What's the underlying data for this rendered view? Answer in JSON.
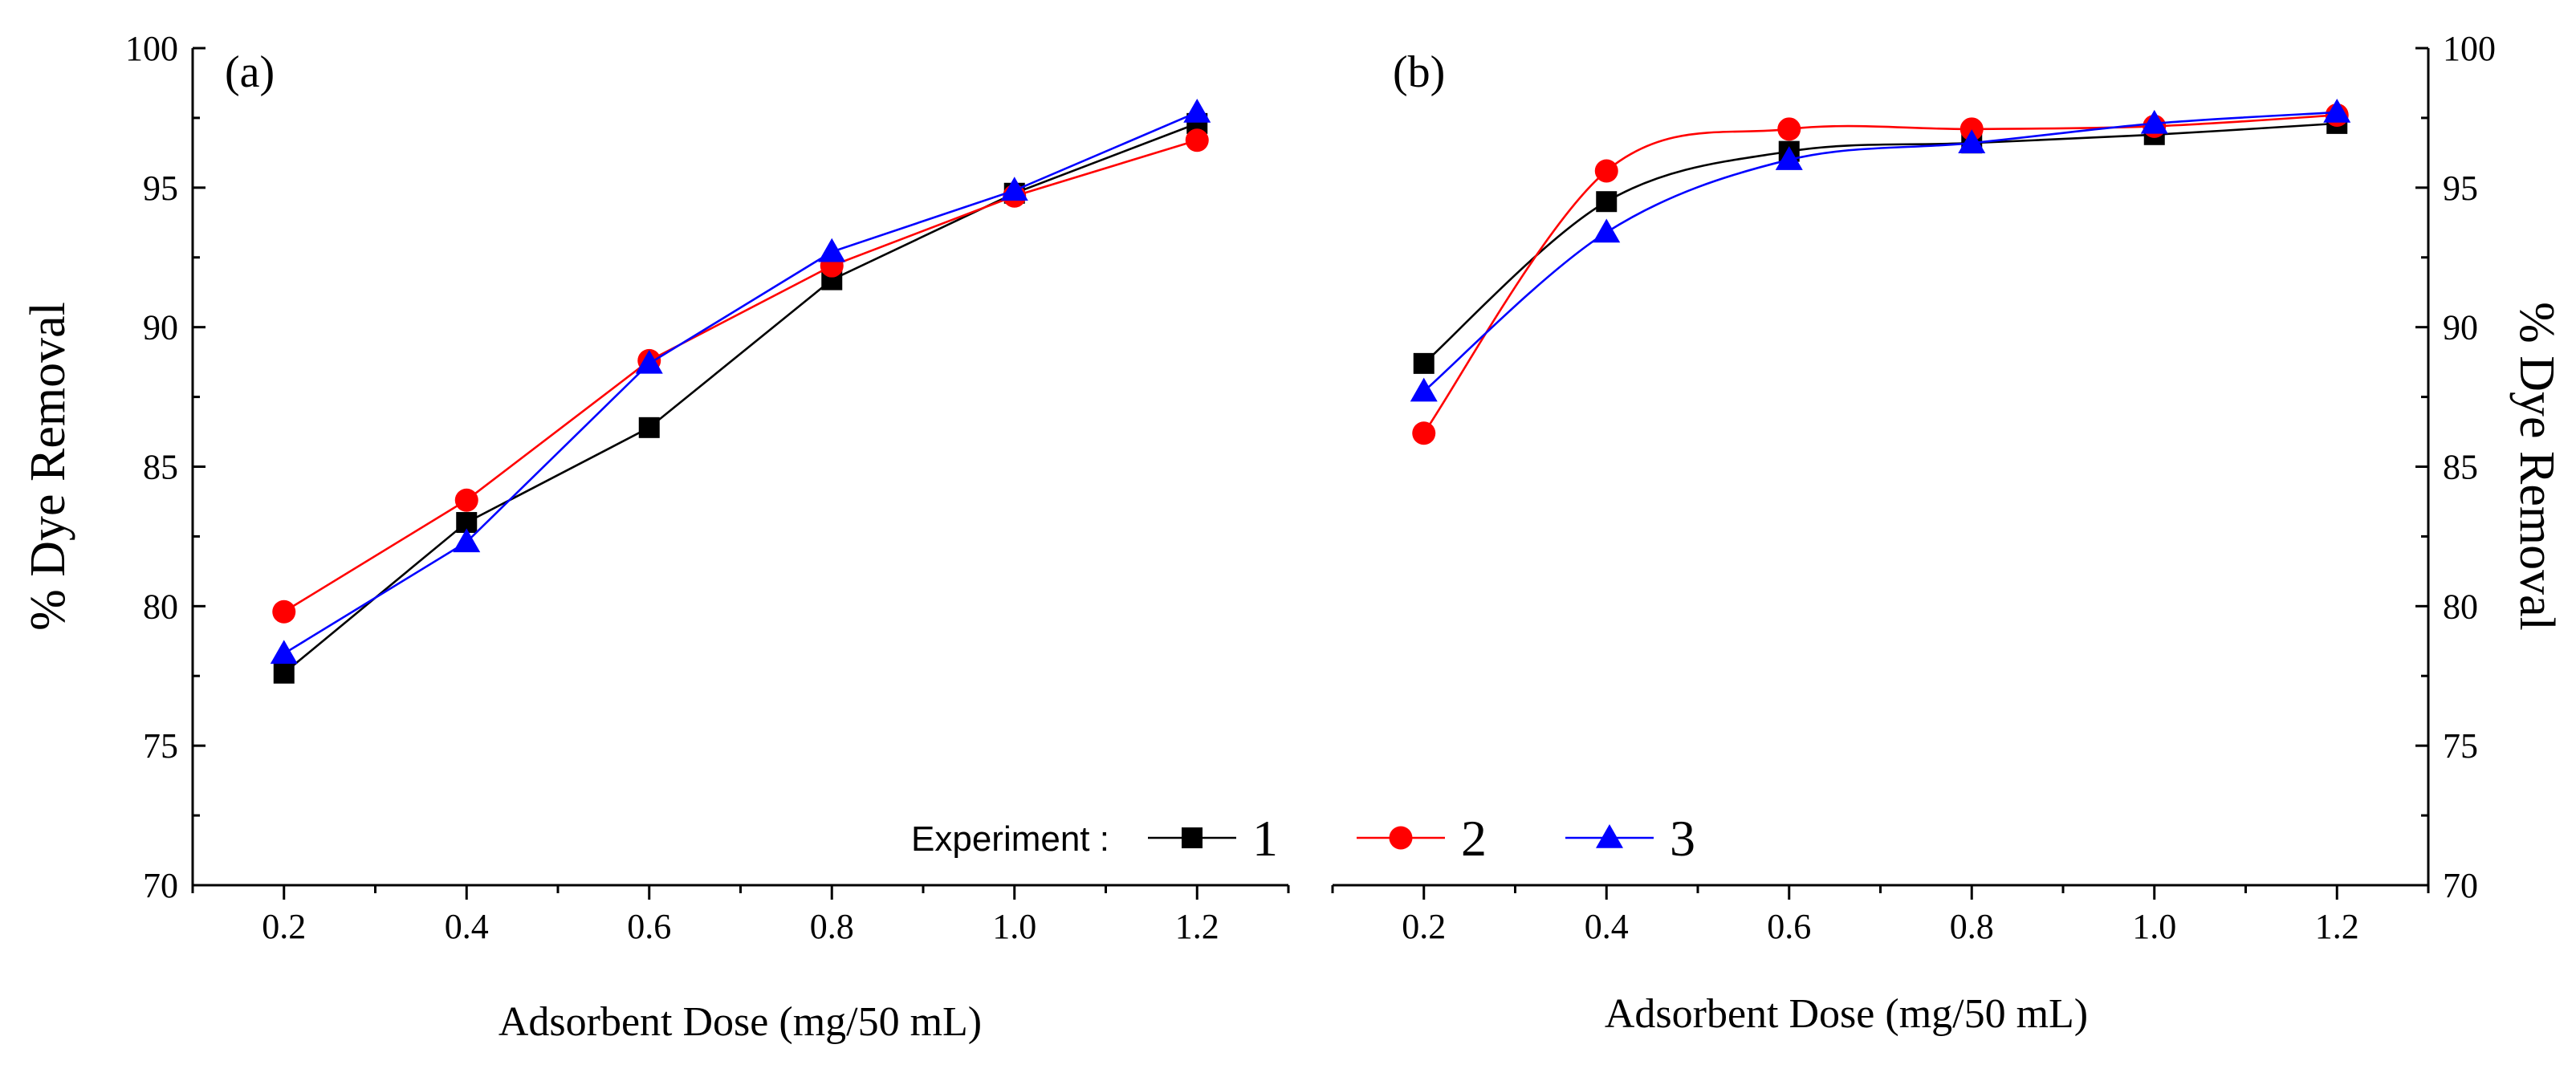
{
  "chart_data": [
    {
      "panel": "(a)",
      "type": "line",
      "x": [
        0.2,
        0.4,
        0.6,
        0.8,
        1.0,
        1.2
      ],
      "xtick_labels": [
        "0.2",
        "0.4",
        "0.6",
        "0.8",
        "1.0",
        "1.2"
      ],
      "xlim": [
        0.1,
        1.3
      ],
      "ylim": [
        70,
        100
      ],
      "yticks": [
        70,
        75,
        80,
        85,
        90,
        95,
        100
      ],
      "ytick_labels": [
        "70",
        "75",
        "80",
        "85",
        "90",
        "95",
        "100"
      ],
      "xlabel": "Adsorbent Dose (mg/50 mL)",
      "ylabel": "% Dye Removal",
      "yaxis_side": "left",
      "series": [
        {
          "name": "1",
          "color": "#000000",
          "marker": "square",
          "values": [
            77.6,
            83.0,
            86.4,
            91.7,
            94.8,
            97.3
          ]
        },
        {
          "name": "2",
          "color": "#ff0000",
          "marker": "circle",
          "values": [
            79.8,
            83.8,
            88.8,
            92.2,
            94.7,
            96.7
          ]
        },
        {
          "name": "3",
          "color": "#0000ff",
          "marker": "triangle",
          "values": [
            78.3,
            82.3,
            88.7,
            92.7,
            94.9,
            97.7
          ]
        }
      ]
    },
    {
      "panel": "(b)",
      "type": "line",
      "x": [
        0.2,
        0.4,
        0.6,
        0.8,
        1.0,
        1.2
      ],
      "xtick_labels": [
        "0.2",
        "0.4",
        "0.6",
        "0.8",
        "1.0",
        "1.2"
      ],
      "xlim": [
        0.1,
        1.3
      ],
      "ylim": [
        70,
        100
      ],
      "yticks": [
        70,
        75,
        80,
        85,
        90,
        95,
        100
      ],
      "ytick_labels": [
        "70",
        "75",
        "80",
        "85",
        "90",
        "95",
        "100"
      ],
      "xlabel": "Adsorbent Dose (mg/50 mL)",
      "ylabel": "% Dye Removal",
      "yaxis_side": "right",
      "series": [
        {
          "name": "1",
          "color": "#000000",
          "marker": "square",
          "values": [
            88.7,
            94.5,
            96.3,
            96.6,
            96.9,
            97.3
          ]
        },
        {
          "name": "2",
          "color": "#ff0000",
          "marker": "circle",
          "values": [
            86.2,
            95.6,
            97.1,
            97.1,
            97.2,
            97.6
          ]
        },
        {
          "name": "3",
          "color": "#0000ff",
          "marker": "triangle",
          "values": [
            87.7,
            93.4,
            96.0,
            96.6,
            97.3,
            97.7
          ]
        }
      ]
    }
  ],
  "legend": {
    "title": "Experiment :",
    "entries": [
      "1",
      "2",
      "3"
    ],
    "placement": "bottom-center"
  }
}
